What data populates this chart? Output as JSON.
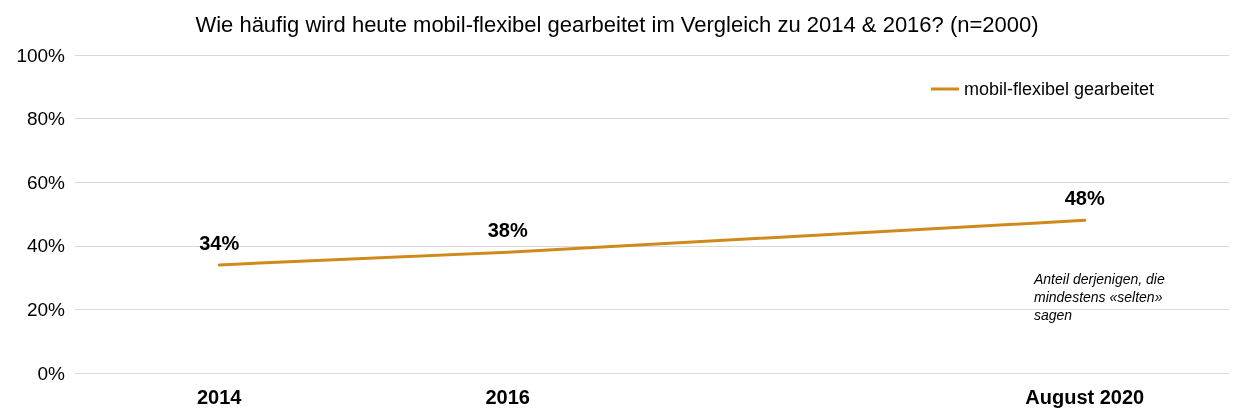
{
  "chart_data": {
    "type": "line",
    "title": "Wie häufig wird heute mobil-flexibel gearbeitet im Vergleich zu 2014 & 2016? (n=2000)",
    "categories": [
      "2014",
      "2016",
      null,
      "August 2020"
    ],
    "series": [
      {
        "name": "mobil-flexibel gearbeitet",
        "color": "#d08a1c",
        "values": [
          34,
          38,
          null,
          48
        ]
      }
    ],
    "ylim": [
      0,
      100
    ],
    "yticks": [
      {
        "value": 0,
        "label": "0%"
      },
      {
        "value": 20,
        "label": "20%"
      },
      {
        "value": 40,
        "label": "40%"
      },
      {
        "value": 60,
        "label": "60%"
      },
      {
        "value": 80,
        "label": "80%"
      },
      {
        "value": 100,
        "label": "100%"
      }
    ],
    "value_labels": [
      "34%",
      "38%",
      null,
      "48%"
    ],
    "annotations": [
      "Anteil derjenigen, die mindestens «selten» sagen"
    ],
    "grid": "y",
    "legend": "top right",
    "marker": "none",
    "line_style": "solid"
  }
}
